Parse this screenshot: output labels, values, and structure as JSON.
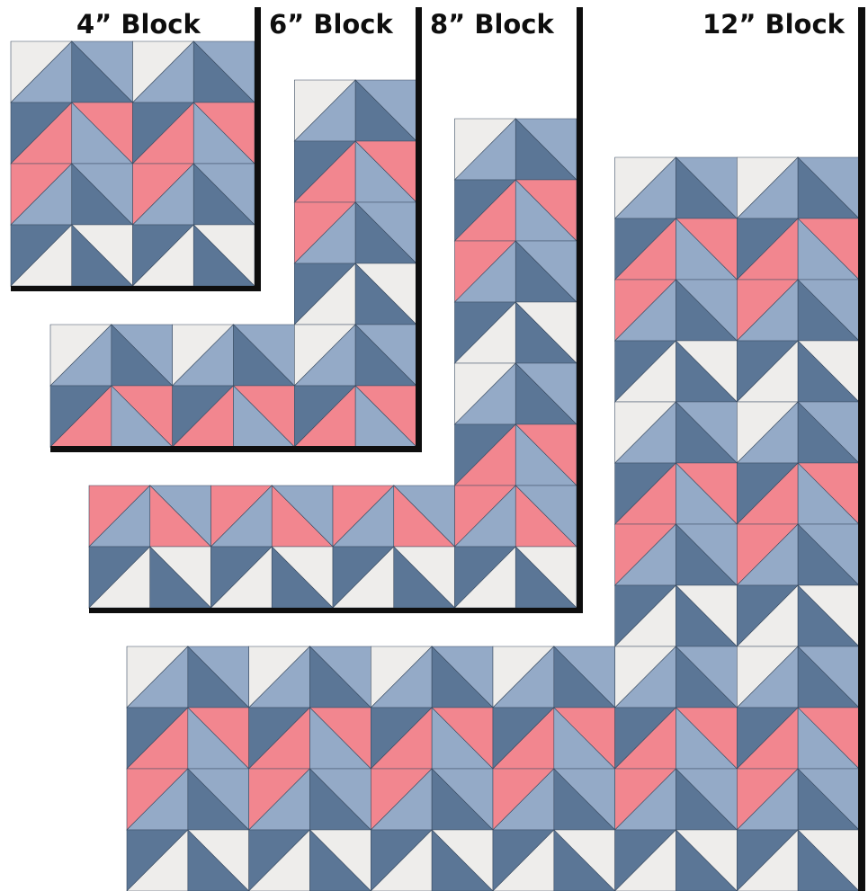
{
  "colors": {
    "light": "#eeedeb",
    "mid": "#94aac7",
    "dark": "#5b7696",
    "pink": "#f2868f",
    "line": "#3a4c62",
    "bar": "#0e0e0e"
  },
  "blocks": [
    {
      "name": "block-4",
      "label": "4” Block",
      "rows": 4,
      "cols": 4,
      "tiles": [
        [
          "LM",
          "MD",
          "LM",
          "MD"
        ],
        [
          "DP",
          "PM",
          "DP",
          "PM"
        ],
        [
          "PM",
          "MD",
          "PM",
          "MD"
        ],
        [
          "DL",
          "LD",
          "DL",
          "LD"
        ]
      ]
    },
    {
      "name": "block-6",
      "label": "6” Block",
      "rows": 6,
      "cols": 6,
      "tiles": [
        [
          "",
          "",
          "",
          "",
          "LM",
          "MD"
        ],
        [
          "",
          "",
          "",
          "",
          "DP",
          "PM"
        ],
        [
          "",
          "",
          "",
          "",
          "PM",
          "MD"
        ],
        [
          "",
          "",
          "",
          "",
          "DL",
          "LD"
        ],
        [
          "LM",
          "MD",
          "LM",
          "MD",
          "LM",
          "MD"
        ],
        [
          "DP",
          "PM",
          "DP",
          "PM",
          "DP",
          "PM"
        ]
      ]
    },
    {
      "name": "block-8",
      "label": "8” Block",
      "rows": 8,
      "cols": 8,
      "tiles": [
        [
          "",
          "",
          "",
          "",
          "",
          "",
          "LM",
          "MD"
        ],
        [
          "",
          "",
          "",
          "",
          "",
          "",
          "DP",
          "PM"
        ],
        [
          "",
          "",
          "",
          "",
          "",
          "",
          "PM",
          "MD"
        ],
        [
          "",
          "",
          "",
          "",
          "",
          "",
          "DL",
          "LD"
        ],
        [
          "",
          "",
          "",
          "",
          "",
          "",
          "LM",
          "MD"
        ],
        [
          "",
          "",
          "",
          "",
          "",
          "",
          "DP",
          "PM"
        ],
        [
          "PM",
          "MP",
          "PM",
          "MP",
          "PM",
          "MP",
          "PM",
          "MP"
        ],
        [
          "DL",
          "LD",
          "DL",
          "LD",
          "DL",
          "LD",
          "DL",
          "LD"
        ]
      ]
    },
    {
      "name": "block-12",
      "label": "12” Block",
      "rows": 12,
      "cols": 12,
      "tiles": [
        [
          "",
          "",
          "",
          "",
          "",
          "",
          "",
          "",
          "LM",
          "MD",
          "LM",
          "MD"
        ],
        [
          "",
          "",
          "",
          "",
          "",
          "",
          "",
          "",
          "DP",
          "PM",
          "DP",
          "PM"
        ],
        [
          "",
          "",
          "",
          "",
          "",
          "",
          "",
          "",
          "PM",
          "MD",
          "PM",
          "MD"
        ],
        [
          "",
          "",
          "",
          "",
          "",
          "",
          "",
          "",
          "DL",
          "LD",
          "DL",
          "LD"
        ],
        [
          "",
          "",
          "",
          "",
          "",
          "",
          "",
          "",
          "LM",
          "MD",
          "LM",
          "MD"
        ],
        [
          "",
          "",
          "",
          "",
          "",
          "",
          "",
          "",
          "DP",
          "PM",
          "DP",
          "PM"
        ],
        [
          "",
          "",
          "",
          "",
          "",
          "",
          "",
          "",
          "PM",
          "MD",
          "PM",
          "MD"
        ],
        [
          "",
          "",
          "",
          "",
          "",
          "",
          "",
          "",
          "DL",
          "LD",
          "DL",
          "LD"
        ],
        [
          "LM",
          "MD",
          "LM",
          "MD",
          "LM",
          "MD",
          "LM",
          "MD",
          "LM",
          "MD",
          "LM",
          "MD"
        ],
        [
          "DP",
          "PM",
          "DP",
          "PM",
          "DP",
          "PM",
          "DP",
          "PM",
          "DP",
          "PM",
          "DP",
          "PM"
        ],
        [
          "PM",
          "MD",
          "PM",
          "MD",
          "PM",
          "MD",
          "PM",
          "MD",
          "PM",
          "MD",
          "PM",
          "MD"
        ],
        [
          "DL",
          "LD",
          "DL",
          "LD",
          "DL",
          "LD",
          "DL",
          "LD",
          "DL",
          "LD",
          "DL",
          "LD"
        ]
      ]
    }
  ]
}
